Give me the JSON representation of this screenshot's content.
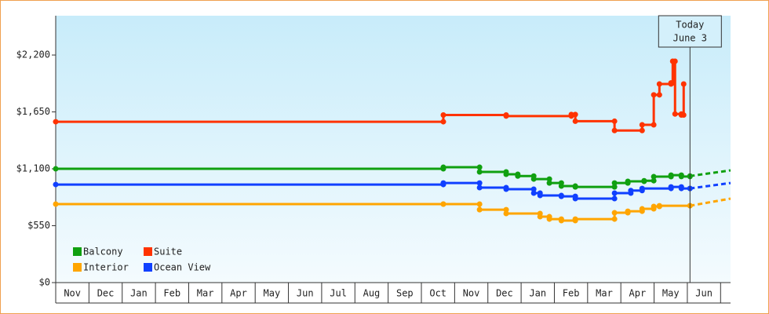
{
  "chart_data": {
    "type": "step-line",
    "xlim": [
      0,
      20.3
    ],
    "xticks": [
      {
        "value": 0.5,
        "label": "Nov"
      },
      {
        "value": 1.5,
        "label": "Dec"
      },
      {
        "value": 2.5,
        "label": "Jan"
      },
      {
        "value": 3.5,
        "label": "Feb"
      },
      {
        "value": 4.5,
        "label": "Mar"
      },
      {
        "value": 5.5,
        "label": "Apr"
      },
      {
        "value": 6.5,
        "label": "May"
      },
      {
        "value": 7.5,
        "label": "Jun"
      },
      {
        "value": 8.5,
        "label": "Jul"
      },
      {
        "value": 9.5,
        "label": "Aug"
      },
      {
        "value": 10.5,
        "label": "Sep"
      },
      {
        "value": 11.5,
        "label": "Oct"
      },
      {
        "value": 12.5,
        "label": "Nov"
      },
      {
        "value": 13.5,
        "label": "Dec"
      },
      {
        "value": 14.5,
        "label": "Jan"
      },
      {
        "value": 15.5,
        "label": "Feb"
      },
      {
        "value": 16.5,
        "label": "Mar"
      },
      {
        "value": 17.5,
        "label": "Apr"
      },
      {
        "value": 18.5,
        "label": "May"
      },
      {
        "value": 19.5,
        "label": "Jun"
      }
    ],
    "ylim": [
      0,
      2580
    ],
    "yticks": [
      {
        "value": 0,
        "label": "$0"
      },
      {
        "value": 550,
        "label": "$550"
      },
      {
        "value": 1100,
        "label": "$1,100"
      },
      {
        "value": 1650,
        "label": "$1,650"
      },
      {
        "value": 2200,
        "label": "$2,200"
      }
    ],
    "annotation": {
      "x": 19.08,
      "lines": [
        "Today",
        "June 3"
      ]
    },
    "legend": "lower-left",
    "series": [
      {
        "name": "Balcony",
        "color": "#10a010",
        "x": [
          0,
          11.66,
          12.75,
          13.55,
          13.9,
          14.38,
          14.85,
          15.21,
          15.63,
          16.81,
          17.21,
          17.7,
          17.99,
          18.51,
          18.82,
          19.08
        ],
        "values": [
          1100,
          1115,
          1070,
          1047,
          1030,
          1001,
          963,
          933,
          925,
          963,
          979,
          985,
          1024,
          1039,
          1025,
          1030
        ],
        "projection": 1085
      },
      {
        "name": "Suite",
        "color": "#ff3300",
        "x": [
          0,
          11.66,
          13.55,
          15.51,
          15.63,
          16.81,
          17.64,
          17.99,
          18.16,
          18.51,
          18.56,
          18.63,
          18.82,
          18.89
        ],
        "values": [
          1555,
          1620,
          1610,
          1625,
          1560,
          1470,
          1525,
          1815,
          1920,
          1930,
          2140,
          1630,
          1620,
          1920
        ]
      },
      {
        "name": "Interior",
        "color": "#ffa500",
        "x": [
          0,
          11.66,
          12.75,
          13.55,
          14.57,
          14.85,
          15.21,
          15.63,
          16.81,
          17.21,
          17.64,
          17.99,
          18.16,
          19.08
        ],
        "values": [
          759,
          759,
          705,
          668,
          637,
          614,
          599,
          614,
          675,
          690,
          713,
          736,
          743,
          743
        ],
        "projection": 812
      },
      {
        "name": "Ocean View",
        "color": "#1040ff",
        "x": [
          0,
          11.66,
          12.75,
          13.55,
          14.38,
          14.57,
          15.21,
          15.63,
          16.81,
          17.3,
          17.64,
          18.51,
          18.82,
          19.08
        ],
        "values": [
          948,
          963,
          918,
          903,
          865,
          842,
          834,
          812,
          865,
          890,
          910,
          925,
          910,
          910
        ],
        "projection": 963
      }
    ]
  }
}
